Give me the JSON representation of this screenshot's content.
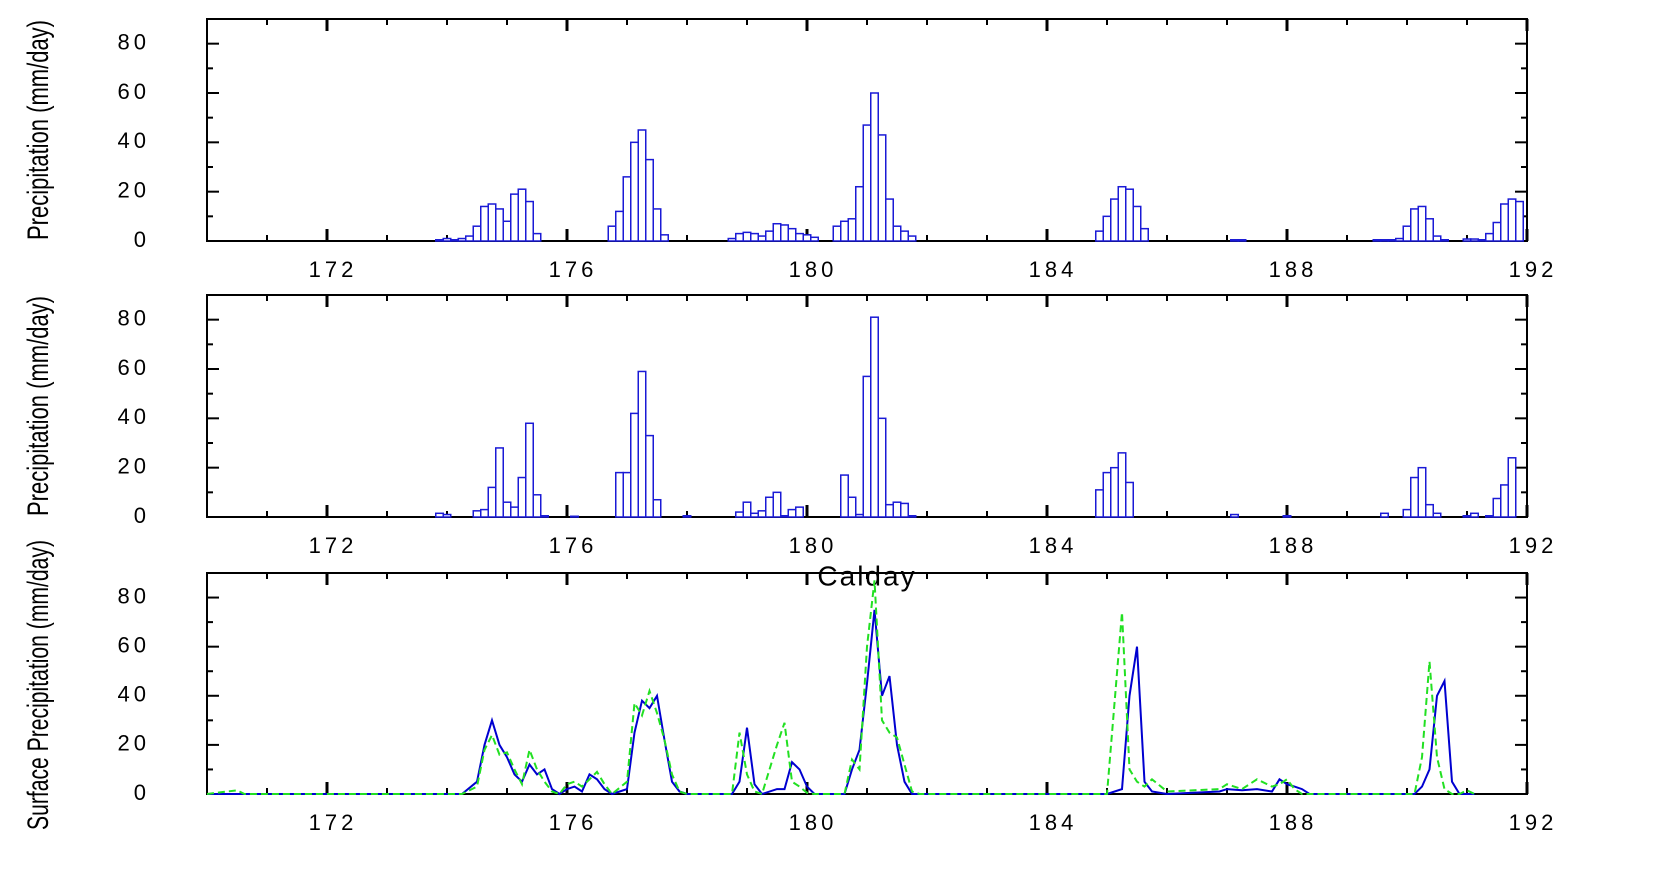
{
  "chart_data": [
    {
      "type": "bar",
      "y_label": "Precipitation (mm/day)",
      "color": "#1a1ad6",
      "xlim": [
        170,
        192
      ],
      "xticks": [
        172,
        176,
        180,
        184,
        188,
        192
      ],
      "ylim": [
        0,
        90
      ],
      "yticks": [
        0,
        20,
        40,
        60,
        80
      ],
      "x": [
        173.875,
        174,
        174.125,
        174.25,
        174.375,
        174.5,
        174.625,
        174.75,
        174.875,
        175,
        175.125,
        175.25,
        175.375,
        175.5,
        176.75,
        176.875,
        177,
        177.125,
        177.25,
        177.375,
        177.5,
        177.625,
        178.75,
        178.875,
        179,
        179.125,
        179.25,
        179.375,
        179.5,
        179.625,
        179.75,
        179.875,
        180,
        180.125,
        180.5,
        180.625,
        180.75,
        180.875,
        181,
        181.125,
        181.25,
        181.375,
        181.5,
        181.625,
        181.75,
        184.875,
        185,
        185.125,
        185.25,
        185.375,
        185.5,
        185.625,
        187.125,
        187.25,
        189.5,
        189.625,
        189.75,
        189.875,
        190,
        190.125,
        190.25,
        190.375,
        190.5,
        190.625,
        191,
        191.125,
        191.25,
        191.375,
        191.5,
        191.625,
        191.75,
        191.875
      ],
      "values": [
        0.5,
        1,
        0.5,
        1,
        2,
        6,
        14,
        15,
        13,
        8,
        19,
        21,
        16,
        3,
        6,
        12,
        26,
        40,
        45,
        33,
        13,
        2.5,
        1,
        3,
        3.5,
        3,
        2,
        4,
        7,
        6.5,
        5,
        3,
        2.5,
        1.5,
        6,
        8,
        9,
        22,
        47,
        60,
        43,
        17,
        6,
        4,
        2,
        4,
        10,
        17,
        22,
        21,
        14,
        5,
        0.5,
        0.5,
        0.5,
        0.5,
        0.5,
        1,
        6,
        13,
        14,
        9,
        2,
        0.5,
        0.8,
        0.8,
        0.5,
        3,
        7.5,
        15,
        17,
        16
      ]
    },
    {
      "type": "bar",
      "y_label": "Precipitation (mm/day)",
      "color": "#1a1ad6",
      "xlim": [
        170,
        192
      ],
      "xticks": [
        172,
        176,
        180,
        184,
        188,
        192
      ],
      "ylim": [
        0,
        90
      ],
      "yticks": [
        0,
        20,
        40,
        60,
        80
      ],
      "x": [
        173.875,
        174,
        174.5,
        174.625,
        174.75,
        174.875,
        175,
        175.125,
        175.25,
        175.375,
        175.5,
        175.625,
        176.125,
        176.875,
        177,
        177.125,
        177.25,
        177.375,
        177.5,
        178,
        178.875,
        179,
        179.125,
        179.25,
        179.375,
        179.5,
        179.625,
        179.75,
        179.875,
        180.625,
        180.75,
        180.875,
        181,
        181.125,
        181.25,
        181.375,
        181.5,
        181.625,
        181.75,
        184.875,
        185,
        185.125,
        185.25,
        185.375,
        187.125,
        188,
        189.625,
        190,
        190.125,
        190.25,
        190.375,
        190.5,
        191,
        191.125,
        191.375,
        191.5,
        191.625,
        191.75
      ],
      "values": [
        1.5,
        1,
        2.5,
        3,
        12,
        28,
        6,
        4,
        16,
        38,
        9,
        0.5,
        0.3,
        18,
        18,
        42,
        59,
        33,
        7,
        0.5,
        2,
        6,
        1.5,
        2.5,
        8,
        10,
        0.5,
        3,
        4,
        17,
        8,
        1,
        57,
        81,
        40,
        5,
        6,
        5.5,
        0.5,
        11,
        18,
        20,
        26,
        14,
        1,
        0.5,
        1.5,
        3,
        16,
        20,
        5,
        1.5,
        0.5,
        1.5,
        0.5,
        7.5,
        13,
        24
      ]
    },
    {
      "type": "line",
      "x_label": "Calday",
      "y_label": "Surface Precipitation (mm/day)",
      "xlim": [
        170,
        192
      ],
      "xticks": [
        172,
        176,
        180,
        184,
        188,
        192
      ],
      "ylim": [
        0,
        90
      ],
      "yticks": [
        0,
        20,
        40,
        60,
        80
      ],
      "x": [
        170,
        170.5,
        170.625,
        174.25,
        174.5,
        174.625,
        174.75,
        174.875,
        175,
        175.125,
        175.25,
        175.375,
        175.5,
        175.625,
        175.75,
        175.875,
        176,
        176.125,
        176.25,
        176.375,
        176.5,
        176.625,
        176.75,
        177,
        177.125,
        177.25,
        177.375,
        177.5,
        177.625,
        177.75,
        177.875,
        178,
        178.75,
        178.875,
        179,
        179.125,
        179.25,
        179.5,
        179.625,
        179.75,
        179.875,
        180,
        180.125,
        180.625,
        180.75,
        180.875,
        181,
        181.125,
        181.25,
        181.375,
        181.5,
        181.625,
        181.75,
        181.875,
        185,
        185.25,
        185.375,
        185.5,
        185.625,
        185.75,
        186,
        186.875,
        187,
        187.25,
        187.5,
        187.75,
        187.875,
        188,
        188.125,
        188.25,
        188.375,
        190.125,
        190.25,
        190.375,
        190.5,
        190.625,
        190.75,
        190.875,
        191,
        191.125
      ],
      "series": [
        {
          "color": "#0000d0",
          "dashed": false,
          "values": [
            0,
            0,
            0,
            0,
            5,
            20,
            30,
            20,
            15,
            8,
            5,
            12,
            8,
            10,
            2,
            0,
            2,
            3,
            1,
            8,
            6,
            2,
            0,
            2,
            25,
            38,
            35,
            40,
            22,
            5,
            1,
            0,
            0,
            5,
            27,
            4,
            0,
            2,
            2,
            13,
            10,
            3,
            0,
            0,
            10,
            18,
            45,
            75,
            40,
            48,
            20,
            5,
            0,
            0,
            0,
            2,
            40,
            60,
            5,
            1,
            0,
            1,
            2,
            1.5,
            2,
            1,
            6,
            4,
            3,
            2,
            0,
            0,
            3,
            10,
            40,
            46,
            5,
            0,
            0,
            0
          ]
        },
        {
          "color": "#22e022",
          "dashed": true,
          "values": [
            0,
            1.5,
            0,
            0,
            3,
            18,
            24,
            16,
            17,
            10,
            4,
            18,
            10,
            5,
            1,
            0,
            4,
            5,
            3,
            6,
            9,
            4,
            0,
            5,
            37,
            32,
            42,
            33,
            22,
            8,
            1,
            0,
            0,
            25,
            8,
            1,
            0,
            20,
            29,
            5,
            3,
            0.5,
            0,
            0,
            14,
            10,
            60,
            87,
            30,
            25,
            23,
            12,
            1,
            0,
            0,
            74,
            10,
            5,
            3,
            6,
            1,
            2,
            4,
            2,
            6,
            3,
            4,
            6,
            2,
            0,
            0,
            0,
            15,
            54,
            15,
            2,
            0,
            0,
            1.5,
            0
          ]
        }
      ]
    }
  ]
}
